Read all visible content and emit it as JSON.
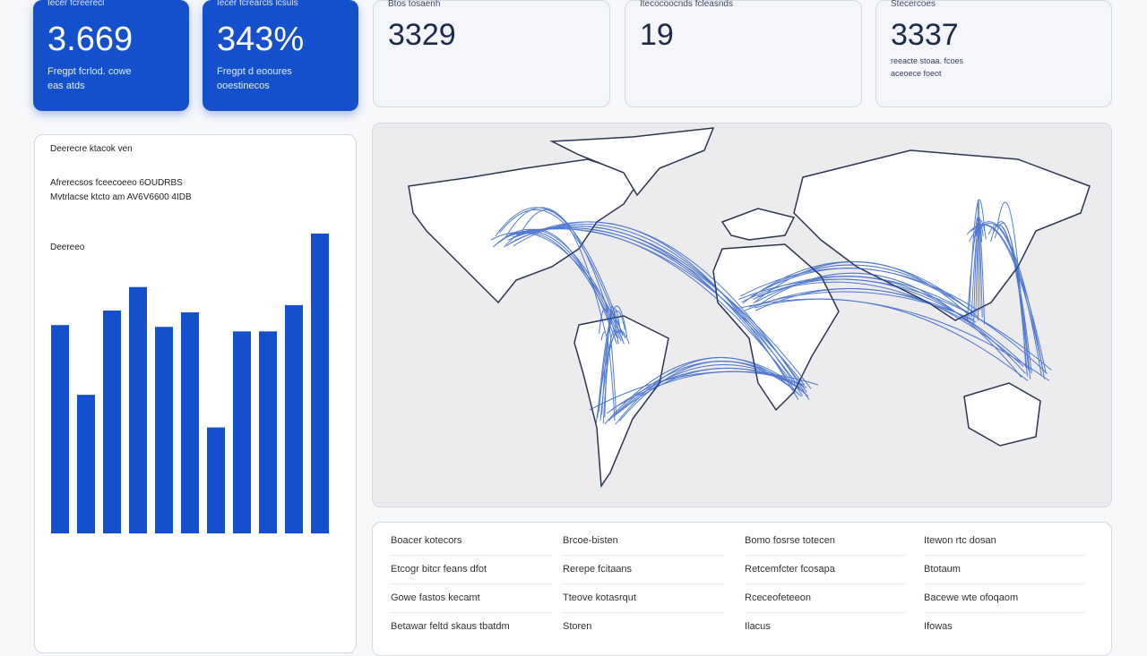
{
  "cards": [
    {
      "label": "Iecer fcreerecl",
      "value": "3.669",
      "lines": [
        "Fregpt fcrlod. cowe",
        "eas atds"
      ]
    },
    {
      "label": "Iecer fcrearcls lcsuls",
      "value": "343%",
      "lines": [
        "Fregpt d eooures",
        "ooestinecos"
      ]
    },
    {
      "label": "Btos tosaenh",
      "value": "3329",
      "lines": []
    },
    {
      "label": "Itecocoocnds fcleasnds",
      "value": "19",
      "lines": []
    },
    {
      "label": "Stecercoes",
      "value": "3337",
      "lines": [
        "reeacte stoaa. fcoes",
        "aceoece foeot"
      ]
    }
  ],
  "panel": {
    "title": "Deerecre ktacok ven",
    "lines": [
      "Afrerecsos fceecoeeo 6OUDRBS",
      "Mvtrlacse ktcto am AV6V6600 4IDB"
    ],
    "chart_label": "Deereeo"
  },
  "chart_data": {
    "type": "bar",
    "color": "#1450cc",
    "values": [
      230,
      153,
      246,
      272,
      228,
      244,
      117,
      223,
      223,
      252,
      331
    ]
  },
  "table": {
    "rows": [
      [
        "Boacer kotecors",
        "Brcoe-bisten",
        "Bomo fosrse totecen",
        "Itewon rtc dosan"
      ],
      [
        "Etcogr bitcr feans dfot",
        "Rerepe fcitaans",
        "Retcemfcter fcosapa",
        "Btotaum"
      ],
      [
        "Gowe fastos kecamt",
        "Tteove kotasrqut",
        "Rceceofeteeon",
        "Bacewe wte ofoqaom"
      ],
      [
        "Betawar feltd skaus tbatdm",
        "Storen",
        "Ilacus",
        "Ifowas"
      ]
    ]
  }
}
